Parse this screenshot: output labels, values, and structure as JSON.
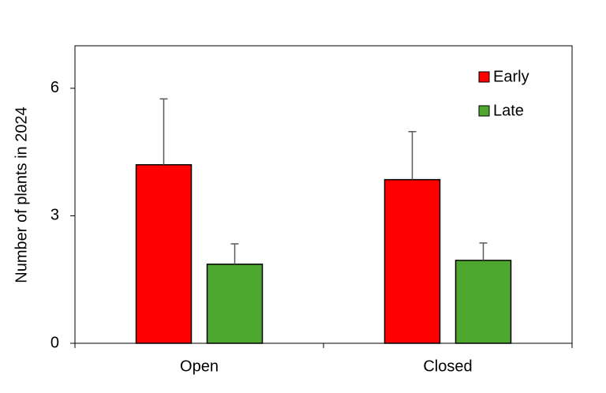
{
  "chart_data": {
    "type": "bar",
    "y_label": "Number of plants in 2024",
    "categories": [
      "Open",
      "Closed"
    ],
    "series": [
      {
        "name": "Early",
        "color": "#ff0000",
        "values": [
          4.2,
          3.85
        ],
        "errors": [
          1.55,
          1.13
        ]
      },
      {
        "name": "Late",
        "color": "#4ea72e",
        "values": [
          1.86,
          1.95
        ],
        "errors": [
          0.48,
          0.41
        ]
      }
    ],
    "ylim": [
      0,
      7
    ],
    "yticks": [
      0,
      3,
      6
    ],
    "legend": "upper-right"
  }
}
